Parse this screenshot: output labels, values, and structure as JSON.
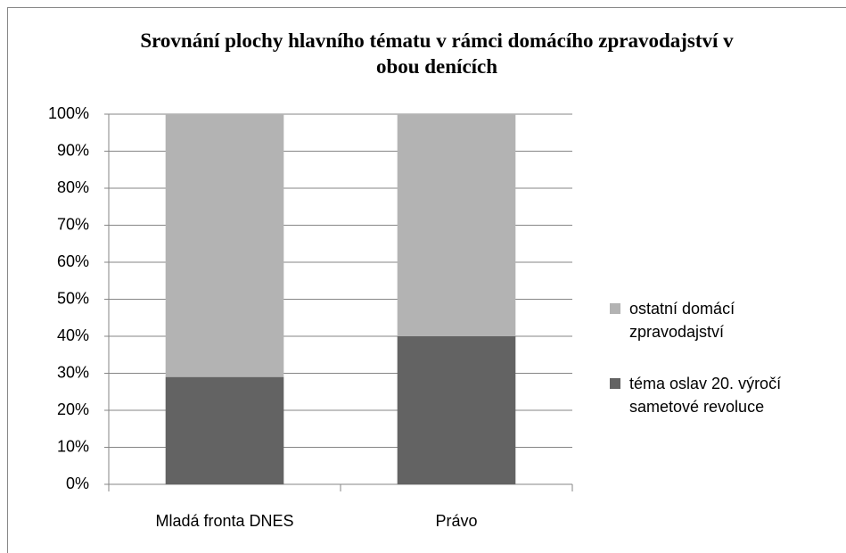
{
  "chart_data": {
    "type": "stacked_bar",
    "title": "Srovnání plochy hlavního tématu v rámci domácího zpravodajství v obou denících",
    "categories": [
      "Mladá fronta DNES",
      "Právo"
    ],
    "series": [
      {
        "name": "téma oslav 20. výročí sametové revoluce",
        "color": "#636363",
        "values": [
          29,
          40
        ]
      },
      {
        "name": "ostatní domácí zpravodajství",
        "color": "#b3b3b3",
        "values": [
          71,
          60
        ]
      }
    ],
    "ylim": [
      0,
      100
    ],
    "yticks": [
      {
        "value": 0,
        "label": "0%"
      },
      {
        "value": 10,
        "label": "10%"
      },
      {
        "value": 20,
        "label": "20%"
      },
      {
        "value": 30,
        "label": "30%"
      },
      {
        "value": 40,
        "label": "40%"
      },
      {
        "value": 50,
        "label": "50%"
      },
      {
        "value": 60,
        "label": "60%"
      },
      {
        "value": 70,
        "label": "70%"
      },
      {
        "value": 80,
        "label": "80%"
      },
      {
        "value": 90,
        "label": "90%"
      },
      {
        "value": 100,
        "label": "100%"
      }
    ],
    "grid": true,
    "legend": "right"
  }
}
